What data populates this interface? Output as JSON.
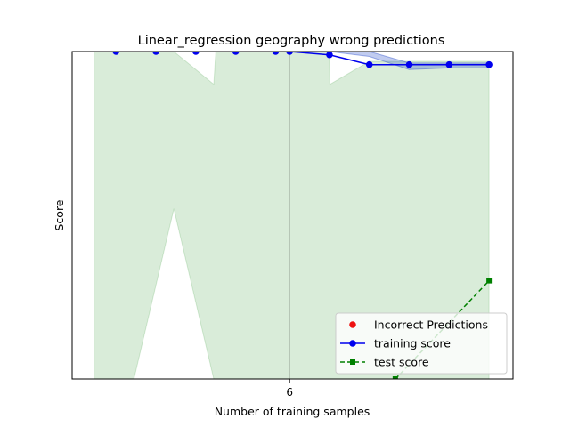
{
  "chart_data": {
    "type": "line",
    "title": "Linear_regression geography wrong predictions",
    "xlabel": "Number of training samples",
    "ylabel": "Score",
    "x_ticks": [
      6
    ],
    "xlim": [
      0.55,
      11.6
    ],
    "ylim": [
      0.0,
      1.0
    ],
    "vline_x": 6,
    "legend_position": "lower-right",
    "legend": [
      {
        "name": "Incorrect Predictions",
        "marker": "circle",
        "color": "#ee1111"
      },
      {
        "name": "training score",
        "marker": "circle",
        "line": "solid",
        "color": "#0000ee"
      },
      {
        "name": "test score",
        "marker": "square",
        "line": "dashed",
        "color": "#008000"
      }
    ],
    "training_band": {
      "x": [
        7,
        8,
        9,
        10,
        11
      ],
      "upper": [
        1.0,
        1.0,
        0.965,
        0.965,
        0.965
      ],
      "lower": [
        1.0,
        0.985,
        0.945,
        0.95,
        0.95
      ]
    },
    "test_band": {
      "x": [
        1.1,
        1.65,
        2.1,
        3.1,
        4.1,
        4.15,
        5.0,
        6.0,
        7.0,
        7.01,
        8.0,
        9.0,
        10.0,
        11.0,
        11.0
      ],
      "upper": [
        1.0,
        1.0,
        1.0,
        1.0,
        0.9,
        1.0,
        1.0,
        1.0,
        1.0,
        0.9,
        0.97,
        0.97,
        0.97,
        0.97,
        0.0
      ],
      "lower": [
        0.0,
        0.0,
        0.0,
        0.52,
        0.0,
        0.0,
        0.0,
        0.0,
        0.0,
        0.0,
        0.0,
        0.0,
        0.0,
        0.0,
        0.0
      ]
    },
    "series": [
      {
        "name": "training score",
        "x": [
          1.65,
          2.65,
          3.65,
          4.65,
          5.65,
          6.0,
          7.0,
          8.0,
          9.0,
          10.0,
          11.0
        ],
        "values": [
          1.0,
          1.0,
          1.0,
          1.0,
          1.0,
          1.0,
          0.99,
          0.96,
          0.96,
          0.96,
          0.96
        ]
      },
      {
        "name": "test score",
        "x": [
          8.65,
          11.0
        ],
        "values": [
          0.0,
          0.3
        ]
      }
    ]
  }
}
